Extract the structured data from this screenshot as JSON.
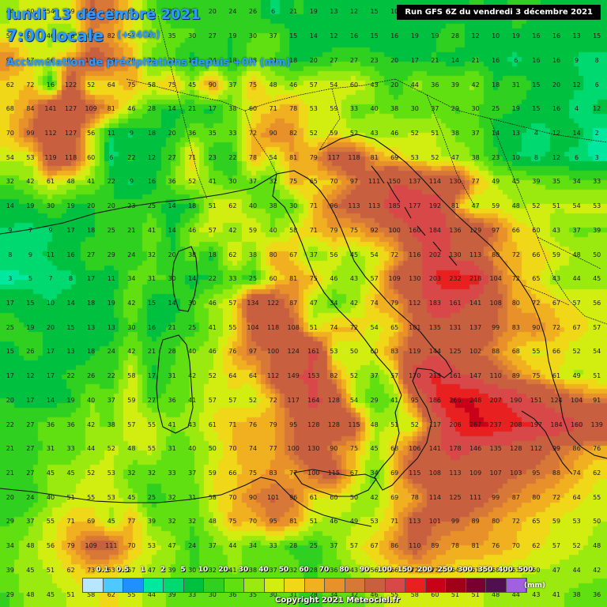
{
  "header": {
    "date": "lundi 13 décembre 2021",
    "time": "7:00 locale",
    "offset": "(+240h)",
    "subtitle": "Accumulation de précipitations depuis +0h (mm)",
    "run": "Run GFS 6Z du vendredi 3 décembre 2021"
  },
  "legend": {
    "labels": [
      "0.1",
      "0.5",
      "1",
      "2",
      "5",
      "10",
      "20",
      "30",
      "40",
      "50",
      "60",
      "70",
      "80",
      "90",
      "100",
      "150",
      "200",
      "250",
      "300",
      "350",
      "400",
      "500"
    ],
    "unit": "(mm)",
    "colors": [
      "#ffffff",
      "#b8e6ff",
      "#4fc8ff",
      "#1e90ff",
      "#00e8a0",
      "#00d870",
      "#00c040",
      "#30d020",
      "#60e010",
      "#9aea10",
      "#d2ee10",
      "#f0d818",
      "#f0b020",
      "#e8902a",
      "#d87838",
      "#c86040",
      "#d84848",
      "#e82020",
      "#c80018",
      "#a00018",
      "#780030",
      "#501050",
      "#a060e0"
    ]
  },
  "footer": {
    "copyright": "Copyright 2021 Meteociel.fr"
  },
  "grid_values": [
    [
      44,
      60,
      54,
      59,
      103,
      92,
      63,
      32,
      21,
      30,
      20,
      24,
      26,
      6,
      21,
      19,
      13,
      12,
      15,
      10,
      13,
      16,
      15,
      22,
      16,
      23,
      21,
      18,
      14,
      13
    ],
    [
      59,
      57,
      46,
      39,
      87,
      82,
      57,
      47,
      35,
      30,
      27,
      19,
      30,
      37,
      15,
      14,
      12,
      16,
      15,
      16,
      19,
      19,
      28,
      12,
      10,
      19,
      16,
      16,
      13,
      15
    ],
    [
      91,
      57,
      56,
      84,
      121,
      99,
      79,
      32,
      31,
      16,
      24,
      18,
      38,
      31,
      18,
      20,
      27,
      27,
      23,
      20,
      17,
      21,
      14,
      21,
      16,
      6,
      16,
      16,
      9,
      8
    ],
    [
      62,
      72,
      16,
      122,
      52,
      64,
      75,
      58,
      75,
      45,
      90,
      37,
      75,
      48,
      46,
      57,
      54,
      60,
      43,
      20,
      44,
      36,
      39,
      42,
      18,
      31,
      15,
      20,
      12,
      6
    ],
    [
      68,
      84,
      141,
      127,
      109,
      81,
      46,
      28,
      14,
      21,
      17,
      38,
      60,
      71,
      78,
      53,
      59,
      33,
      40,
      38,
      30,
      37,
      29,
      30,
      25,
      19,
      15,
      16,
      4,
      12
    ],
    [
      70,
      99,
      112,
      127,
      56,
      11,
      9,
      18,
      20,
      36,
      35,
      33,
      72,
      90,
      82,
      52,
      59,
      52,
      43,
      46,
      52,
      51,
      38,
      37,
      14,
      13,
      4,
      12,
      14,
      2
    ],
    [
      54,
      53,
      119,
      118,
      60,
      6,
      22,
      12,
      27,
      71,
      23,
      22,
      78,
      54,
      81,
      79,
      117,
      118,
      81,
      69,
      53,
      52,
      47,
      38,
      23,
      10,
      8,
      12,
      6,
      3
    ],
    [
      32,
      42,
      61,
      48,
      41,
      22,
      9,
      16,
      36,
      52,
      41,
      30,
      37,
      32,
      75,
      65,
      70,
      97,
      111,
      150,
      137,
      114,
      130,
      77,
      49,
      45,
      39,
      35,
      34,
      33
    ],
    [
      14,
      19,
      30,
      19,
      20,
      20,
      23,
      25,
      14,
      18,
      51,
      62,
      40,
      38,
      30,
      71,
      96,
      113,
      113,
      185,
      177,
      192,
      81,
      47,
      59,
      48,
      52,
      51,
      54,
      53
    ],
    [
      9,
      7,
      9,
      17,
      18,
      25,
      21,
      41,
      14,
      46,
      57,
      42,
      59,
      40,
      58,
      71,
      79,
      75,
      92,
      100,
      160,
      184,
      136,
      129,
      97,
      66,
      60,
      43,
      37,
      39
    ],
    [
      8,
      9,
      11,
      16,
      27,
      29,
      24,
      32,
      20,
      38,
      18,
      62,
      38,
      80,
      67,
      37,
      56,
      45,
      54,
      72,
      116,
      202,
      130,
      113,
      80,
      72,
      66,
      59,
      48,
      50
    ],
    [
      3,
      5,
      7,
      8,
      17,
      11,
      34,
      31,
      30,
      14,
      22,
      33,
      25,
      60,
      81,
      75,
      46,
      43,
      57,
      109,
      130,
      203,
      232,
      218,
      104,
      72,
      65,
      43,
      44,
      45
    ],
    [
      17,
      15,
      10,
      14,
      18,
      19,
      42,
      15,
      14,
      30,
      46,
      57,
      134,
      122,
      87,
      47,
      34,
      42,
      74,
      79,
      112,
      183,
      161,
      141,
      108,
      80,
      72,
      67,
      57,
      56
    ],
    [
      25,
      19,
      20,
      15,
      13,
      13,
      30,
      16,
      21,
      25,
      41,
      55,
      104,
      118,
      108,
      51,
      74,
      72,
      54,
      65,
      101,
      135,
      131,
      137,
      99,
      83,
      90,
      72,
      67,
      57
    ],
    [
      15,
      26,
      17,
      13,
      18,
      24,
      42,
      21,
      28,
      40,
      46,
      76,
      97,
      100,
      124,
      161,
      53,
      50,
      60,
      83,
      119,
      144,
      125,
      102,
      88,
      68,
      55,
      66,
      52,
      54
    ],
    [
      17,
      12,
      17,
      22,
      26,
      22,
      58,
      17,
      31,
      42,
      52,
      64,
      64,
      112,
      149,
      153,
      82,
      52,
      37,
      57,
      170,
      213,
      161,
      147,
      110,
      89,
      75,
      61,
      49,
      51
    ],
    [
      20,
      17,
      14,
      19,
      40,
      37,
      59,
      27,
      36,
      41,
      57,
      57,
      52,
      72,
      117,
      164,
      128,
      54,
      29,
      41,
      95,
      186,
      266,
      248,
      207,
      190,
      151,
      124,
      104,
      91
    ],
    [
      22,
      27,
      36,
      36,
      42,
      38,
      57,
      55,
      41,
      43,
      61,
      71,
      76,
      79,
      95,
      128,
      128,
      115,
      48,
      51,
      52,
      117,
      206,
      267,
      237,
      208,
      197,
      184,
      160,
      139
    ],
    [
      21,
      27,
      31,
      33,
      44,
      52,
      48,
      55,
      31,
      40,
      50,
      70,
      74,
      77,
      100,
      130,
      90,
      75,
      45,
      68,
      106,
      141,
      178,
      146,
      135,
      128,
      112,
      99,
      86,
      76
    ],
    [
      21,
      27,
      45,
      45,
      52,
      53,
      32,
      32,
      33,
      37,
      59,
      66,
      75,
      83,
      77,
      100,
      115,
      67,
      34,
      69,
      115,
      108,
      113,
      109,
      107,
      103,
      95,
      88,
      74,
      62
    ],
    [
      20,
      24,
      40,
      51,
      55,
      53,
      45,
      25,
      32,
      31,
      58,
      70,
      90,
      101,
      96,
      61,
      60,
      50,
      42,
      69,
      78,
      114,
      125,
      111,
      99,
      87,
      80,
      72,
      64,
      55
    ],
    [
      29,
      37,
      55,
      71,
      69,
      45,
      77,
      39,
      32,
      32,
      48,
      75,
      70,
      95,
      81,
      51,
      46,
      49,
      53,
      71,
      113,
      101,
      99,
      89,
      80,
      72,
      65,
      59,
      53,
      50
    ],
    [
      34,
      48,
      56,
      79,
      109,
      111,
      70,
      53,
      47,
      24,
      37,
      44,
      34,
      33,
      28,
      25,
      37,
      57,
      67,
      86,
      110,
      89,
      78,
      81,
      76,
      70,
      62,
      57,
      52,
      48
    ],
    [
      39,
      45,
      51,
      62,
      73,
      63,
      57,
      47,
      39,
      30,
      32,
      41,
      38,
      37,
      32,
      28,
      36,
      43,
      56,
      66,
      72,
      72,
      64,
      61,
      58,
      53,
      50,
      47,
      44,
      42
    ],
    [
      29,
      48,
      45,
      51,
      58,
      62,
      55,
      44,
      39,
      33,
      30,
      36,
      35,
      30,
      31,
      28,
      34,
      32,
      46,
      55,
      58,
      60,
      51,
      51,
      48,
      44,
      43,
      41,
      38,
      36
    ]
  ]
}
